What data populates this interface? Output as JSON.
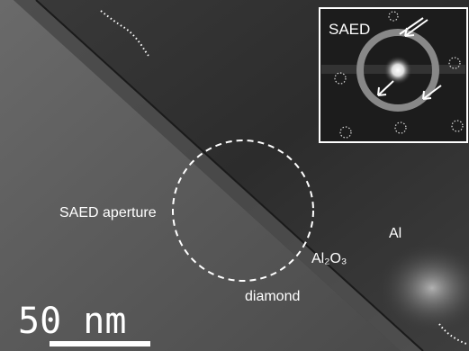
{
  "inset": {
    "label": "SAED"
  },
  "annotations": {
    "aperture": "SAED aperture",
    "al": "Al",
    "oxide": "Al₂O₃",
    "diamond": "diamond"
  },
  "scale_bar": {
    "label": "50 nm"
  }
}
